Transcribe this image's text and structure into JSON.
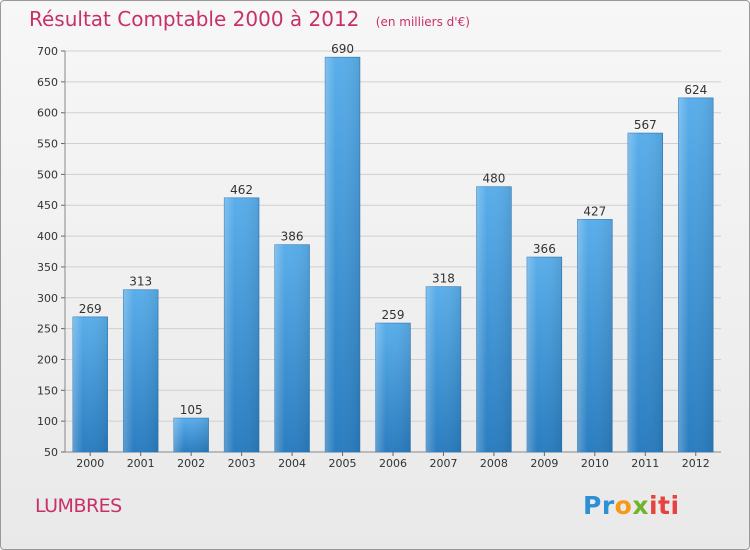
{
  "chart_data": {
    "type": "bar",
    "title": "Résultat Comptable 2000 à 2012",
    "subtitle": "(en milliers d'€)",
    "categories": [
      "2000",
      "2001",
      "2002",
      "2003",
      "2004",
      "2005",
      "2006",
      "2007",
      "2008",
      "2009",
      "2010",
      "2011",
      "2012"
    ],
    "values": [
      269,
      313,
      105,
      462,
      386,
      690,
      259,
      318,
      480,
      366,
      427,
      567,
      624
    ],
    "ylim": [
      50,
      700
    ],
    "yticks": [
      50,
      100,
      150,
      200,
      250,
      300,
      350,
      400,
      450,
      500,
      550,
      600,
      650,
      700
    ],
    "xlabel": "",
    "ylabel": "",
    "grid": true,
    "bar_color": "#3a8fd3"
  },
  "footer": {
    "locality": "LUMBRES",
    "logo_text": "Proxiti",
    "logo_parts": [
      "Pr",
      "o",
      "x",
      "iti"
    ]
  }
}
